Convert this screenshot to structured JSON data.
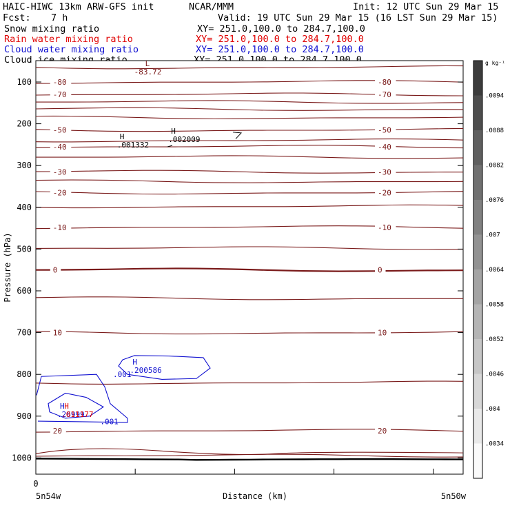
{
  "header": {
    "model_title": "HAIC-HIWC 13km ARW-GFS init",
    "agency": "NCAR/MMM",
    "init": "Init: 12 UTC Sun 29 Mar 15",
    "fcst_label": "Fcst:",
    "fcst_value": "7 h",
    "valid": "Valid: 19 UTC Sun 29 Mar 15 (16 LST Sun 29 Mar 15)"
  },
  "fields": [
    {
      "name": "Snow mixing ratio",
      "xy": "XY= 251.0,100.0 to 284.7,100.0",
      "color": "#000000"
    },
    {
      "name": "Rain water mixing ratio",
      "xy": "XY= 251.0,100.0 to 284.7,100.0",
      "color": "#e00000"
    },
    {
      "name": "Cloud water mixing ratio",
      "xy": "XY= 251.0,100.0 to 284.7,100.0",
      "color": "#1010d0"
    },
    {
      "name": "Cloud ice mixing ratio",
      "xy": "XY= 251.0,100.0 to 284.7,100.0",
      "color": "#000000"
    }
  ],
  "chart_data": {
    "type": "contour",
    "ylabel": "Pressure (hPa)",
    "xlabel": "Distance (km)",
    "y_ticks": [
      "100",
      "200",
      "300",
      "400",
      "500",
      "600",
      "700",
      "800",
      "900",
      "1000"
    ],
    "x_tick_zero": "0",
    "x_left_label": "5n54w",
    "x_right_label": "5n50w",
    "colorbar_unit": "g kg⁻¹",
    "colorbar_ticks": [
      ".0094",
      ".0088",
      ".0082",
      ".0076",
      ".007",
      ".0064",
      ".0058",
      ".0052",
      ".0046",
      ".004",
      ".0034"
    ],
    "temperature_color": "#7a1a1a",
    "temperature_contours": [
      {
        "p": 65,
        "label": "",
        "emph": false
      },
      {
        "p": 100,
        "label": "-80",
        "emph": false
      },
      {
        "p": 130,
        "label": "-70",
        "emph": false
      },
      {
        "p": 148,
        "label": "",
        "emph": false
      },
      {
        "p": 165,
        "label": "",
        "emph": false
      },
      {
        "p": 185,
        "label": "",
        "emph": false
      },
      {
        "p": 215,
        "label": "-50",
        "emph": false
      },
      {
        "p": 240,
        "label": "",
        "emph": false
      },
      {
        "p": 255,
        "label": "-40",
        "emph": false
      },
      {
        "p": 280,
        "label": "",
        "emph": false
      },
      {
        "p": 315,
        "label": "-30",
        "emph": false
      },
      {
        "p": 338,
        "label": "",
        "emph": false
      },
      {
        "p": 365,
        "label": "-20",
        "emph": false
      },
      {
        "p": 398,
        "label": "",
        "emph": false
      },
      {
        "p": 448,
        "label": "-10",
        "emph": false
      },
      {
        "p": 498,
        "label": "",
        "emph": false
      },
      {
        "p": 550,
        "label": "0",
        "emph": true
      },
      {
        "p": 618,
        "label": "",
        "emph": false
      },
      {
        "p": 700,
        "label": "10",
        "emph": false
      },
      {
        "p": 820,
        "label": "",
        "emph": false
      },
      {
        "p": 935,
        "label": "20",
        "emph": false
      },
      {
        "p": 995,
        "label": "",
        "emph": false
      }
    ],
    "extrema": [
      {
        "kind": "L",
        "value": "-83.72",
        "x": 0.23,
        "p": 75,
        "color": "#7a1a1a"
      },
      {
        "kind": "H",
        "value": ".001332",
        "x": 0.19,
        "p": 250,
        "color": "#000000"
      },
      {
        "kind": "H",
        "value": ".002009",
        "x": 0.31,
        "p": 237,
        "color": "#000000"
      },
      {
        "kind": "H",
        "value": ".200586",
        "x": 0.22,
        "p": 790,
        "color": "#1010d0"
      },
      {
        "kind": "H",
        "value": ".26999",
        "x": 0.05,
        "p": 895,
        "color": "#1010d0"
      },
      {
        "kind": "H",
        "value": ".011177",
        "x": 0.06,
        "p": 895,
        "color": "#e00000"
      }
    ],
    "cloud_water_labels": [
      {
        "value": ".001",
        "x": 0.2,
        "p": 800
      },
      {
        "value": ".001",
        "x": 0.17,
        "p": 913
      }
    ]
  }
}
